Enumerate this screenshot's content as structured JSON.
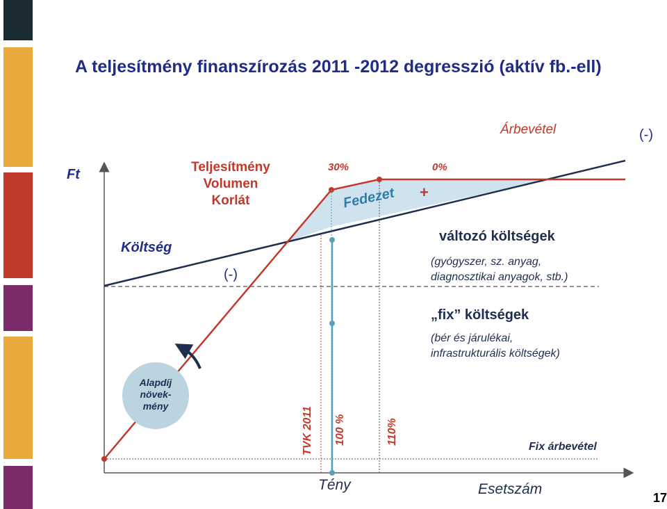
{
  "title": "A teljesítmény finanszírozás 2011 -2012 degresszió (aktív fb.-ell)",
  "stripe_colors": [
    "#1a2a33",
    "#e8a93a",
    "#c0392b",
    "#7b2a6a",
    "#e8a93a",
    "#7b2a6a"
  ],
  "labels": {
    "ft": "Ft",
    "arbevetel": "Árbevétel",
    "minus_top": "(-)",
    "teljesitmeny_l1": "Teljesítmény",
    "teljesitmeny_l2": "Volumen",
    "teljesitmeny_l3": "Korlát",
    "pct_30": "30%",
    "pct_0": "0%",
    "plus": "+",
    "fedezet": "Fedezet",
    "koltseg": "Költség",
    "minus_mid": "(-)",
    "valtozo": "változó költségek",
    "valtozo_detail_l1": "(gyógyszer, sz. anyag,",
    "valtozo_detail_l2": "diagnosztikai anyagok, stb.)",
    "fix": "„fix” költségek",
    "fix_detail_l1": "(bér és járulékai,",
    "fix_detail_l2": "infrastrukturális költségek)",
    "alapdij_l1": "Alapdíj",
    "alapdij_l2": "növek-",
    "alapdij_l3": "mény",
    "tvk": "TVK 2011",
    "pct_100": "100 %",
    "pct_110": "110%",
    "fix_arbevetel": "Fix árbevétel",
    "teny": "Tény",
    "esetszam": "Esetszám",
    "page_number": "17"
  }
}
